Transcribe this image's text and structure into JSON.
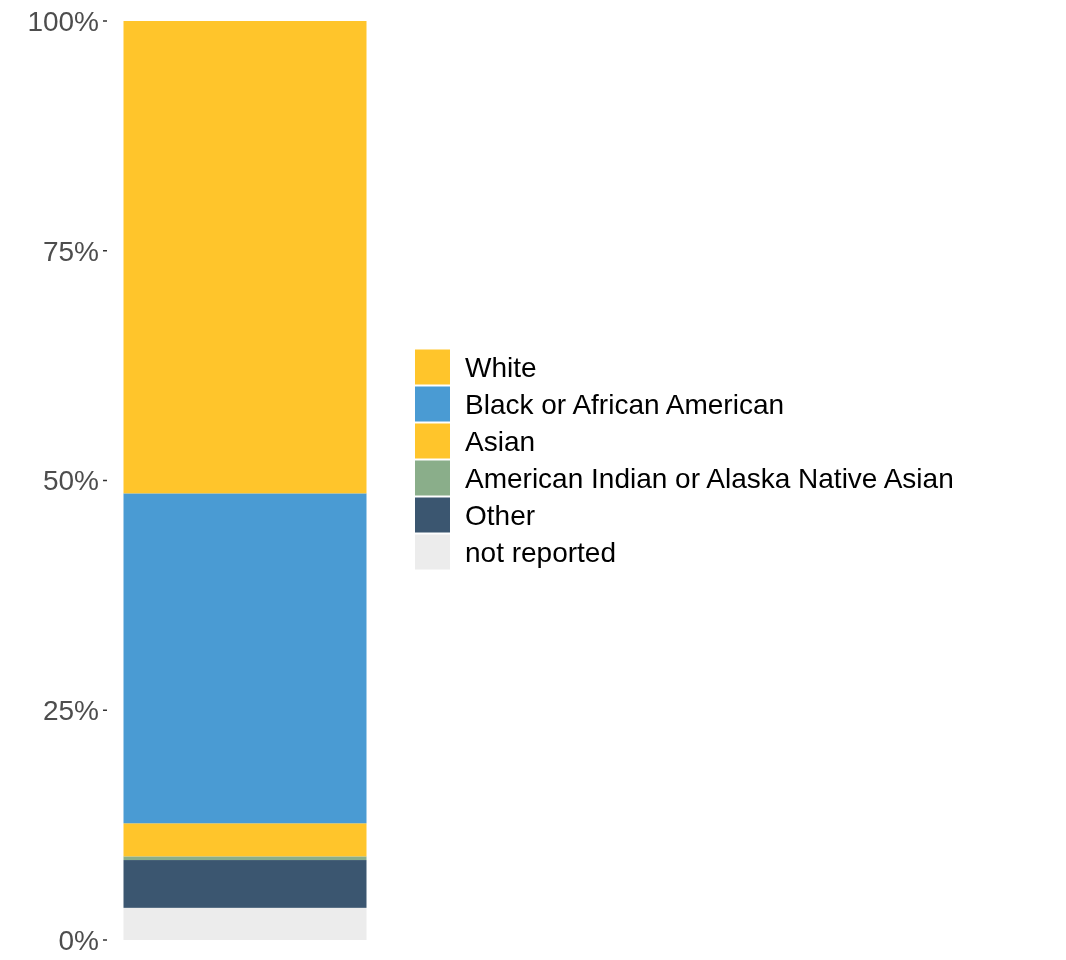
{
  "chart_data": {
    "type": "bar",
    "stacked": true,
    "categories": [
      null
    ],
    "series": [
      {
        "name": "not reported",
        "color": "#ececec",
        "values": [
          3.5
        ]
      },
      {
        "name": "Other",
        "color": "#3b5670",
        "values": [
          5.2
        ]
      },
      {
        "name": "American Indian or Alaska Native Asian",
        "color": "#8aae8a",
        "values": [
          0.4
        ]
      },
      {
        "name": "Asian",
        "color": "#ffc52b",
        "values": [
          3.6
        ]
      },
      {
        "name": "Black or African American",
        "color": "#4a9bd3",
        "values": [
          35.9
        ]
      },
      {
        "name": "White",
        "color": "#ffc52b",
        "values": [
          51.4
        ]
      }
    ],
    "ylim": [
      0,
      100
    ],
    "yticks": [
      {
        "value": 0,
        "label": "0%"
      },
      {
        "value": 25,
        "label": "25%"
      },
      {
        "value": 50,
        "label": "50%"
      },
      {
        "value": 75,
        "label": "75%"
      },
      {
        "value": 100,
        "label": "100%"
      }
    ],
    "grid": false,
    "legend": "right"
  }
}
